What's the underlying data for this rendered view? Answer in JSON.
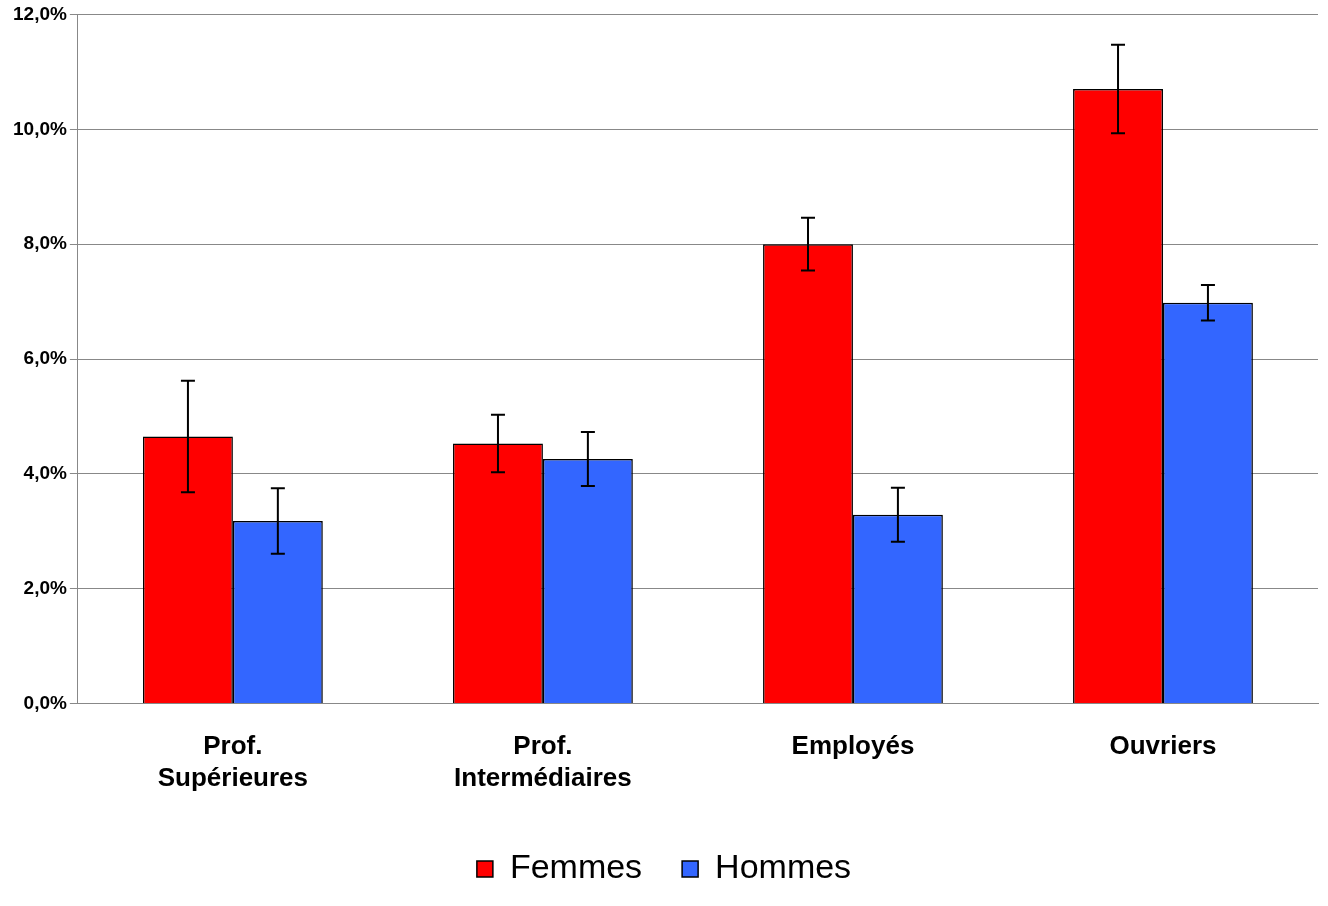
{
  "chart_data": {
    "type": "bar",
    "categories": [
      "Prof. Supérieures",
      "Prof. Intermédiaires",
      "Employés",
      "Ouvriers"
    ],
    "series": [
      {
        "name": "Femmes",
        "color": "#ff0000",
        "values": [
          4.65,
          4.53,
          8.0,
          10.7
        ],
        "errors": [
          0.97,
          0.5,
          0.46,
          0.77
        ]
      },
      {
        "name": "Hommes",
        "color": "#3366ff",
        "values": [
          3.18,
          4.26,
          3.29,
          6.98
        ],
        "errors": [
          0.57,
          0.47,
          0.47,
          0.31
        ]
      }
    ],
    "ylim": [
      0,
      12
    ],
    "yticks": [
      {
        "value": 0,
        "label": "0,0%"
      },
      {
        "value": 2,
        "label": "2,0%"
      },
      {
        "value": 4,
        "label": "4,0%"
      },
      {
        "value": 6,
        "label": "6,0%"
      },
      {
        "value": 8,
        "label": "8,0%"
      },
      {
        "value": 10,
        "label": "10,0%"
      },
      {
        "value": 12,
        "label": "12,0%"
      }
    ],
    "grid": "y",
    "legend": "bottom"
  }
}
